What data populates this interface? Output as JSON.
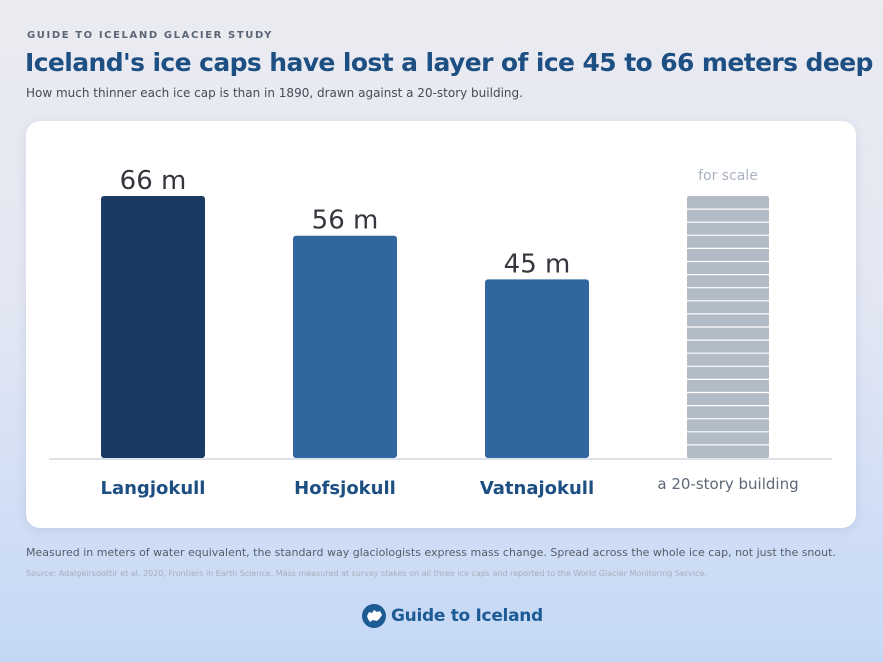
{
  "header": {
    "kicker": "GUIDE TO ICELAND GLACIER STUDY",
    "title": "Iceland's ice caps have lost a layer of ice 45 to 66 meters deep",
    "subtitle": "How much thinner each ice cap is than in 1890, drawn against a 20-story building."
  },
  "chart_data": {
    "type": "bar",
    "categories": [
      "Langjokull",
      "Hofsjokull",
      "Vatnajokull"
    ],
    "values": [
      66,
      56,
      45
    ],
    "unit": "m",
    "data_labels": [
      "66 m",
      "56 m",
      "45 m"
    ],
    "colors": [
      "#1a3a63",
      "#31679e",
      "#31679e"
    ],
    "ylim": [
      0,
      66
    ],
    "grid": false,
    "reference": {
      "label": "a 20-story building",
      "caption": "for scale",
      "stories": 20,
      "color": "#b2bcc7"
    }
  },
  "footer": {
    "note": "Measured in meters of water equivalent, the standard way glaciologists express mass change. Spread across the whole ice cap, not just the snout.",
    "source": "Source: Adalgeirsdottir et al. 2020, Frontiers in Earth Science. Mass measured at survey stakes on all three ice caps and reported to the World Glacier Monitoring Service.",
    "brand": "Guide to Iceland",
    "brand_icon": "iceland-map-icon"
  }
}
